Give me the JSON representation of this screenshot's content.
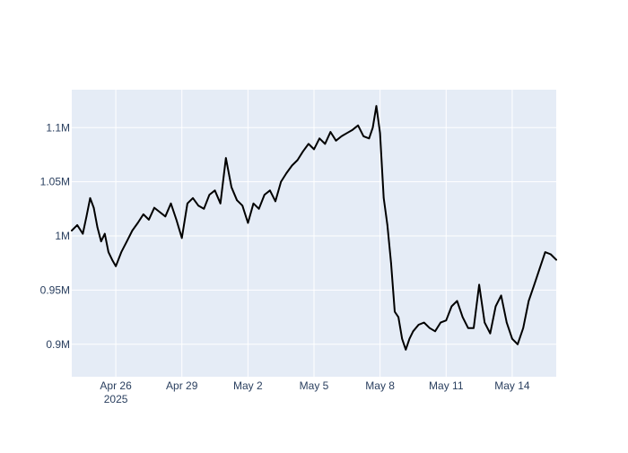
{
  "chart_data": {
    "type": "line",
    "title": "",
    "xlabel": "",
    "ylabel": "",
    "x_range": [
      "2025-04-24",
      "2025-05-16"
    ],
    "ylim": [
      870000,
      1135000
    ],
    "grid": true,
    "legend": "none",
    "colors": {
      "plot_bg": "#e5ecf6",
      "grid": "#ffffff",
      "line": "#000000",
      "tick_text": "#2a3f5f"
    },
    "x_ticks": [
      {
        "value": "2025-04-26",
        "label": "Apr 26",
        "sublabel": "2025"
      },
      {
        "value": "2025-04-29",
        "label": "Apr 29"
      },
      {
        "value": "2025-05-02",
        "label": "May 2"
      },
      {
        "value": "2025-05-05",
        "label": "May 5"
      },
      {
        "value": "2025-05-08",
        "label": "May 8"
      },
      {
        "value": "2025-05-11",
        "label": "May 11"
      },
      {
        "value": "2025-05-14",
        "label": "May 14"
      }
    ],
    "y_ticks": [
      {
        "value": 900000,
        "label": "0.9M"
      },
      {
        "value": 950000,
        "label": "0.95M"
      },
      {
        "value": 1000000,
        "label": "1M"
      },
      {
        "value": 1050000,
        "label": "1.05M"
      },
      {
        "value": 1100000,
        "label": "1.1M"
      }
    ],
    "series": [
      {
        "x": [
          "2025-04-24 00:00",
          "2025-04-24 06:00",
          "2025-04-24 12:00",
          "2025-04-24 16:00",
          "2025-04-24 20:00",
          "2025-04-25 00:00",
          "2025-04-25 04:00",
          "2025-04-25 08:00",
          "2025-04-25 12:00",
          "2025-04-25 16:00",
          "2025-04-25 20:00",
          "2025-04-26 00:00",
          "2025-04-26 06:00",
          "2025-04-26 12:00",
          "2025-04-26 18:00",
          "2025-04-27 00:00",
          "2025-04-27 06:00",
          "2025-04-27 12:00",
          "2025-04-27 18:00",
          "2025-04-28 00:00",
          "2025-04-28 06:00",
          "2025-04-28 12:00",
          "2025-04-28 18:00",
          "2025-04-29 00:00",
          "2025-04-29 06:00",
          "2025-04-29 12:00",
          "2025-04-29 18:00",
          "2025-04-30 00:00",
          "2025-04-30 06:00",
          "2025-04-30 12:00",
          "2025-04-30 18:00",
          "2025-05-01 00:00",
          "2025-05-01 06:00",
          "2025-05-01 12:00",
          "2025-05-01 18:00",
          "2025-05-02 00:00",
          "2025-05-02 06:00",
          "2025-05-02 12:00",
          "2025-05-02 18:00",
          "2025-05-03 00:00",
          "2025-05-03 06:00",
          "2025-05-03 12:00",
          "2025-05-03 18:00",
          "2025-05-04 00:00",
          "2025-05-04 06:00",
          "2025-05-04 12:00",
          "2025-05-04 18:00",
          "2025-05-05 00:00",
          "2025-05-05 06:00",
          "2025-05-05 12:00",
          "2025-05-05 18:00",
          "2025-05-06 00:00",
          "2025-05-06 06:00",
          "2025-05-06 12:00",
          "2025-05-06 18:00",
          "2025-05-07 00:00",
          "2025-05-07 06:00",
          "2025-05-07 12:00",
          "2025-05-07 16:00",
          "2025-05-07 20:00",
          "2025-05-08 00:00",
          "2025-05-08 04:00",
          "2025-05-08 08:00",
          "2025-05-08 12:00",
          "2025-05-08 16:00",
          "2025-05-08 20:00",
          "2025-05-09 00:00",
          "2025-05-09 04:00",
          "2025-05-09 08:00",
          "2025-05-09 12:00",
          "2025-05-09 18:00",
          "2025-05-10 00:00",
          "2025-05-10 06:00",
          "2025-05-10 12:00",
          "2025-05-10 18:00",
          "2025-05-11 00:00",
          "2025-05-11 06:00",
          "2025-05-11 12:00",
          "2025-05-11 18:00",
          "2025-05-12 00:00",
          "2025-05-12 06:00",
          "2025-05-12 12:00",
          "2025-05-12 18:00",
          "2025-05-13 00:00",
          "2025-05-13 06:00",
          "2025-05-13 12:00",
          "2025-05-13 18:00",
          "2025-05-14 00:00",
          "2025-05-14 06:00",
          "2025-05-14 12:00",
          "2025-05-14 18:00",
          "2025-05-15 00:00",
          "2025-05-15 06:00",
          "2025-05-15 12:00",
          "2025-05-15 18:00",
          "2025-05-16 00:00"
        ],
        "y": [
          1005000,
          1010000,
          1002000,
          1018000,
          1035000,
          1026000,
          1008000,
          995000,
          1002000,
          985000,
          978000,
          972000,
          985000,
          995000,
          1005000,
          1012000,
          1020000,
          1015000,
          1026000,
          1022000,
          1018000,
          1030000,
          1015000,
          998000,
          1030000,
          1035000,
          1028000,
          1025000,
          1038000,
          1042000,
          1030000,
          1072000,
          1045000,
          1033000,
          1028000,
          1012000,
          1030000,
          1025000,
          1038000,
          1042000,
          1032000,
          1050000,
          1058000,
          1065000,
          1070000,
          1078000,
          1085000,
          1080000,
          1090000,
          1085000,
          1096000,
          1088000,
          1092000,
          1095000,
          1098000,
          1102000,
          1092000,
          1090000,
          1100000,
          1120000,
          1095000,
          1035000,
          1010000,
          975000,
          930000,
          925000,
          905000,
          895000,
          905000,
          912000,
          918000,
          920000,
          915000,
          912000,
          920000,
          922000,
          935000,
          940000,
          925000,
          915000,
          915000,
          955000,
          920000,
          910000,
          935000,
          945000,
          920000,
          905000,
          900000,
          915000,
          940000,
          955000,
          970000,
          985000,
          983000,
          978000
        ]
      }
    ]
  }
}
